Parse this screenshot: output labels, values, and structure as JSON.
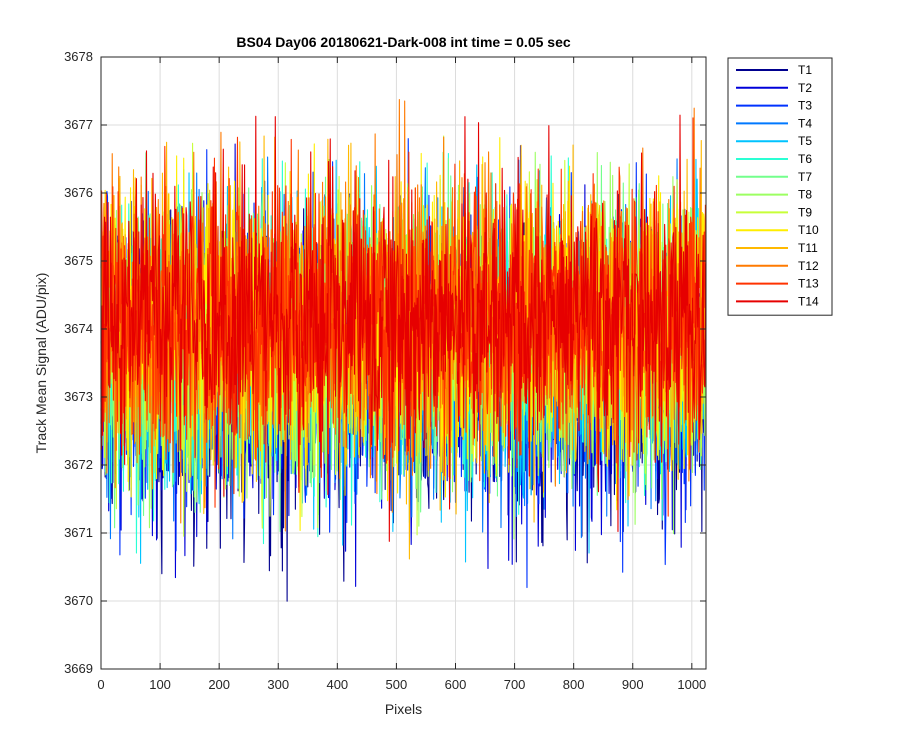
{
  "chart_data": {
    "type": "line",
    "title": "BS04 Day06 20180621-Dark-008 int time = 0.05 sec",
    "xlabel": "Pixels",
    "ylabel": "Track Mean Signal (ADU/pix)",
    "xlim": [
      0,
      1024
    ],
    "ylim": [
      3669,
      3678
    ],
    "xticks": [
      0,
      100,
      200,
      300,
      400,
      500,
      600,
      700,
      800,
      900,
      1000
    ],
    "yticks": [
      3669,
      3670,
      3671,
      3672,
      3673,
      3674,
      3675,
      3676,
      3677,
      3678
    ],
    "grid": true,
    "legend_position": "outside-top-right",
    "series_length": 1024,
    "series_summary_note": null,
    "series": [
      {
        "name": "T1",
        "color": "#00008f",
        "mean": 3673.3,
        "spread": 1.05,
        "min": 3669.9,
        "max": 3676.5
      },
      {
        "name": "T2",
        "color": "#0000d9",
        "mean": 3673.4,
        "spread": 1.05,
        "min": 3670.0,
        "max": 3677.0
      },
      {
        "name": "T3",
        "color": "#0033ff",
        "mean": 3673.5,
        "spread": 1.05,
        "min": 3670.1,
        "max": 3676.8
      },
      {
        "name": "T4",
        "color": "#0079ff",
        "mean": 3673.6,
        "spread": 1.0,
        "min": 3670.1,
        "max": 3676.6
      },
      {
        "name": "T5",
        "color": "#00c3ff",
        "mean": 3673.7,
        "spread": 1.0,
        "min": 3670.4,
        "max": 3676.5
      },
      {
        "name": "T6",
        "color": "#2affd4",
        "mean": 3673.8,
        "spread": 1.0,
        "min": 3670.6,
        "max": 3676.6
      },
      {
        "name": "T7",
        "color": "#73ff8c",
        "mean": 3673.8,
        "spread": 1.0,
        "min": 3670.8,
        "max": 3676.6
      },
      {
        "name": "T8",
        "color": "#9cff62",
        "mean": 3673.9,
        "spread": 1.0,
        "min": 3670.9,
        "max": 3676.6
      },
      {
        "name": "T9",
        "color": "#c7ff38",
        "mean": 3673.9,
        "spread": 1.0,
        "min": 3670.9,
        "max": 3676.9
      },
      {
        "name": "T10",
        "color": "#ffee00",
        "mean": 3674.0,
        "spread": 1.0,
        "min": 3670.4,
        "max": 3676.9
      },
      {
        "name": "T11",
        "color": "#ffb900",
        "mean": 3674.0,
        "spread": 1.0,
        "min": 3670.6,
        "max": 3676.9
      },
      {
        "name": "T12",
        "color": "#ff7a00",
        "mean": 3674.1,
        "spread": 1.0,
        "min": 3670.8,
        "max": 3677.6
      },
      {
        "name": "T13",
        "color": "#ff3300",
        "mean": 3674.1,
        "spread": 1.0,
        "min": 3670.8,
        "max": 3677.2
      },
      {
        "name": "T14",
        "color": "#e60000",
        "mean": 3674.2,
        "spread": 1.0,
        "min": 3670.8,
        "max": 3677.2
      }
    ]
  }
}
